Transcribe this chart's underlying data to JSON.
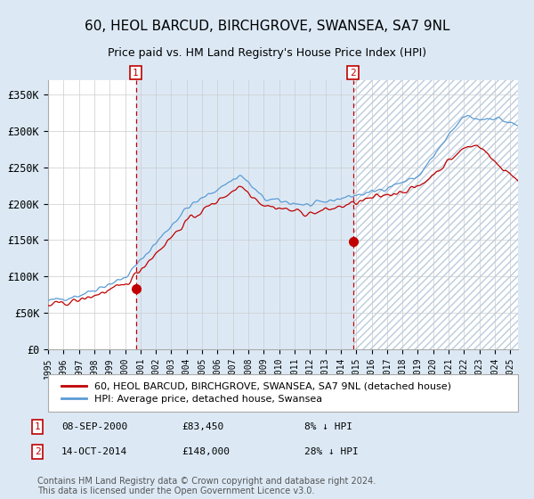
{
  "title": "60, HEOL BARCUD, BIRCHGROVE, SWANSEA, SA7 9NL",
  "subtitle": "Price paid vs. HM Land Registry's House Price Index (HPI)",
  "xlabel": "",
  "ylabel": "",
  "ylim": [
    0,
    370000
  ],
  "xlim_start": 1995.0,
  "xlim_end": 2025.5,
  "yticks": [
    0,
    50000,
    100000,
    150000,
    200000,
    250000,
    300000,
    350000
  ],
  "ytick_labels": [
    "£0",
    "£50K",
    "£100K",
    "£150K",
    "£200K",
    "£250K",
    "£300K",
    "£350K"
  ],
  "bg_color": "#dce9f5",
  "plot_bg": "#ffffff",
  "hpi_color": "#5b9bd5",
  "price_color": "#c00000",
  "sale1_date": 2000.69,
  "sale1_price": 83450,
  "sale1_label": "1",
  "sale2_date": 2014.79,
  "sale2_price": 148000,
  "sale2_label": "2",
  "legend_entry1": "60, HEOL BARCUD, BIRCHGROVE, SWANSEA, SA7 9NL (detached house)",
  "legend_entry2": "HPI: Average price, detached house, Swansea",
  "note1_label": "1",
  "note1_date": "08-SEP-2000",
  "note1_price": "£83,450",
  "note1_hpi": "8% ↓ HPI",
  "note2_label": "2",
  "note2_date": "14-OCT-2014",
  "note2_price": "£148,000",
  "note2_hpi": "28% ↓ HPI",
  "footer": "Contains HM Land Registry data © Crown copyright and database right 2024.\nThis data is licensed under the Open Government Licence v3.0."
}
